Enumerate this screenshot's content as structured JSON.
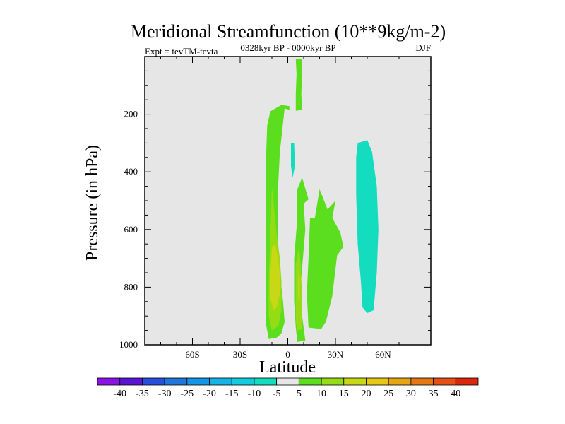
{
  "chart_data": {
    "type": "contour",
    "title": "Meridional Streamfunction (10**9kg/m-2)",
    "subtitle_left": "Expt = tevTM-tevta",
    "subtitle_center": "0328kyr BP - 0000kyr BP",
    "subtitle_right": "DJF",
    "xlabel": "Latitude",
    "ylabel": "Pressure (in hPa)",
    "xlim": [
      -90,
      90
    ],
    "ylim": [
      1000,
      0
    ],
    "x_ticks": [
      {
        "value": -60,
        "label": "60S"
      },
      {
        "value": -30,
        "label": "30S"
      },
      {
        "value": 0,
        "label": "0"
      },
      {
        "value": 30,
        "label": "30N"
      },
      {
        "value": 60,
        "label": "60N"
      }
    ],
    "y_ticks": [
      {
        "value": 200,
        "label": "200"
      },
      {
        "value": 400,
        "label": "400"
      },
      {
        "value": 600,
        "label": "600"
      },
      {
        "value": 800,
        "label": "800"
      },
      {
        "value": 1000,
        "label": "1000"
      }
    ],
    "background_color": "#e6e6e6",
    "colorbar": {
      "labels": [
        "-40",
        "-35",
        "-30",
        "-25",
        "-20",
        "-15",
        "-10",
        "-5",
        "5",
        "10",
        "15",
        "20",
        "25",
        "30",
        "35",
        "40"
      ],
      "colors": [
        "#8a14e6",
        "#5a14d4",
        "#2850dc",
        "#1e78dc",
        "#1496e6",
        "#14b4e6",
        "#14cce0",
        "#14dcbe",
        "#e6e6e6",
        "#5ade1e",
        "#96dc14",
        "#c8d814",
        "#e6c814",
        "#e6a614",
        "#e67814",
        "#e65014",
        "#dc280a"
      ]
    },
    "regions": [
      {
        "level": 5,
        "color": "#5ade1e",
        "points": [
          [
            -12,
            980
          ],
          [
            -7,
            975
          ],
          [
            -4,
            960
          ],
          [
            -2,
            920
          ],
          [
            -3,
            850
          ],
          [
            -5,
            750
          ],
          [
            -6,
            650
          ],
          [
            -6,
            550
          ],
          [
            -6,
            440
          ],
          [
            -5,
            330
          ],
          [
            -3,
            230
          ],
          [
            -2,
            180
          ],
          [
            1,
            185
          ],
          [
            1,
            172
          ],
          [
            -4,
            168
          ],
          [
            -11,
            190
          ],
          [
            -13,
            240
          ],
          [
            -14,
            400
          ],
          [
            -14,
            600
          ],
          [
            -14,
            800
          ],
          [
            -14,
            920
          ]
        ]
      },
      {
        "level": 5,
        "color": "#5ade1e",
        "points": [
          [
            5,
            8
          ],
          [
            9,
            8
          ],
          [
            9,
            60
          ],
          [
            8.5,
            130
          ],
          [
            9,
            185
          ],
          [
            5,
            188
          ],
          [
            5,
            130
          ],
          [
            5.5,
            60
          ]
        ]
      },
      {
        "level": 5,
        "color": "#5ade1e",
        "points": [
          [
            6,
            990
          ],
          [
            11,
            985
          ],
          [
            9,
            900
          ],
          [
            8,
            800
          ],
          [
            11,
            600
          ],
          [
            10,
            510
          ],
          [
            13,
            495
          ],
          [
            9,
            420
          ],
          [
            6,
            460
          ],
          [
            6,
            560
          ],
          [
            4,
            700
          ],
          [
            4,
            850
          ],
          [
            5,
            940
          ]
        ]
      },
      {
        "level": 5,
        "color": "#5ade1e",
        "points": [
          [
            13,
            940
          ],
          [
            21,
            945
          ],
          [
            24,
            920
          ],
          [
            28,
            830
          ],
          [
            31,
            690
          ],
          [
            35,
            660
          ],
          [
            33,
            610
          ],
          [
            28,
            560
          ],
          [
            30,
            500
          ],
          [
            25,
            530
          ],
          [
            20,
            460
          ],
          [
            17,
            560
          ],
          [
            14,
            560
          ],
          [
            13,
            700
          ],
          [
            12,
            820
          ]
        ]
      },
      {
        "level": -5,
        "color": "#14dcbe",
        "points": [
          [
            2,
            300
          ],
          [
            4,
            300
          ],
          [
            4.5,
            380
          ],
          [
            3,
            420
          ],
          [
            2,
            380
          ]
        ]
      },
      {
        "level": -5,
        "color": "#14dcbe",
        "points": [
          [
            44,
            300
          ],
          [
            50,
            290
          ],
          [
            53,
            330
          ],
          [
            56,
            450
          ],
          [
            57,
            600
          ],
          [
            56,
            750
          ],
          [
            54,
            880
          ],
          [
            50,
            890
          ],
          [
            47,
            870
          ],
          [
            46,
            780
          ],
          [
            44,
            650
          ],
          [
            43,
            480
          ],
          [
            43,
            350
          ]
        ]
      },
      {
        "level": 10,
        "color": "#96dc14",
        "points": [
          [
            -10,
            950
          ],
          [
            -6,
            935
          ],
          [
            -4,
            880
          ],
          [
            -4,
            780
          ],
          [
            -5,
            700
          ],
          [
            -7,
            620
          ],
          [
            -10,
            450
          ],
          [
            -11,
            620
          ],
          [
            -12,
            780
          ],
          [
            -12,
            900
          ]
        ]
      },
      {
        "level": 10,
        "color": "#96dc14",
        "points": [
          [
            6,
            950
          ],
          [
            9,
            945
          ],
          [
            9,
            830
          ],
          [
            8,
            720
          ],
          [
            7,
            660
          ],
          [
            5,
            720
          ],
          [
            5,
            830
          ],
          [
            5,
            920
          ]
        ]
      },
      {
        "level": 15,
        "color": "#c8d814",
        "points": [
          [
            -9,
            880
          ],
          [
            -7,
            870
          ],
          [
            -5,
            820
          ],
          [
            -5,
            760
          ],
          [
            -6,
            700
          ],
          [
            -8,
            650
          ],
          [
            -10,
            660
          ],
          [
            -11,
            760
          ],
          [
            -11,
            840
          ]
        ]
      },
      {
        "level": 15,
        "color": "#c8d814",
        "points": [
          [
            6.5,
            840
          ],
          [
            7.5,
            840
          ],
          [
            7.5,
            770
          ],
          [
            7,
            730
          ],
          [
            6.5,
            770
          ]
        ]
      }
    ]
  }
}
